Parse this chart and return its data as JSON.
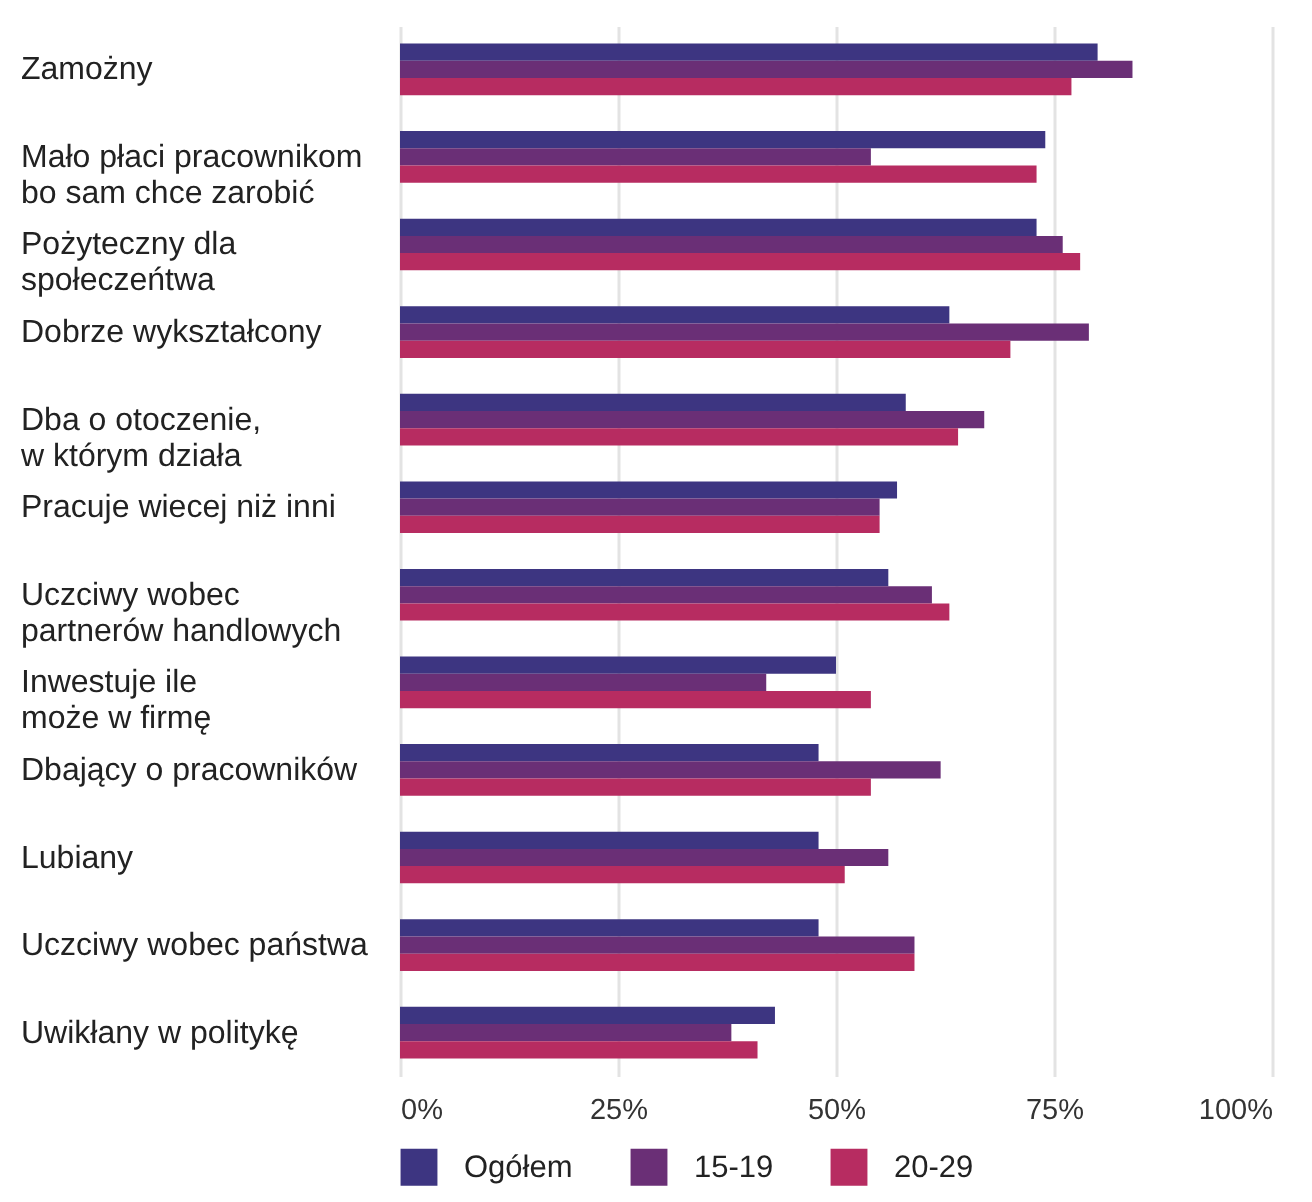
{
  "chart_data": {
    "type": "bar",
    "orientation": "horizontal",
    "categories": [
      "Zamożny",
      "Mało płaci pracownikom\nbo sam chce zarobić",
      "Pożyteczny dla\nspołeczeńtwa",
      "Dobrze wykształcony",
      "Dba o otoczenie,\nw którym działa",
      "Pracuje wiecej niż inni",
      "Uczciwy wobec\npartnerów handlowych",
      "Inwestuje ile\nmoże w firmę",
      "Dbający o pracowników",
      "Lubiany",
      "Uczciwy wobec państwa",
      "Uwikłany w politykę"
    ],
    "series": [
      {
        "name": "Ogółem",
        "color": "#3d3581",
        "values": [
          80,
          74,
          73,
          63,
          58,
          57,
          56,
          50,
          48,
          48,
          48,
          43
        ]
      },
      {
        "name": "15-19",
        "color": "#6a2f76",
        "values": [
          84,
          54,
          76,
          79,
          67,
          55,
          61,
          42,
          62,
          56,
          59,
          38
        ]
      },
      {
        "name": "20-29",
        "color": "#b72c61",
        "values": [
          77,
          73,
          78,
          70,
          64,
          55,
          63,
          54,
          54,
          51,
          59,
          41
        ]
      }
    ],
    "xlim": [
      0,
      100
    ],
    "xticks": [
      {
        "value": 0,
        "label": "0%"
      },
      {
        "value": 25,
        "label": "25%"
      },
      {
        "value": 50,
        "label": "50%"
      },
      {
        "value": 75,
        "label": "75%"
      },
      {
        "value": 100,
        "label": "100%"
      }
    ],
    "grid": "x",
    "legend": "bottom"
  }
}
